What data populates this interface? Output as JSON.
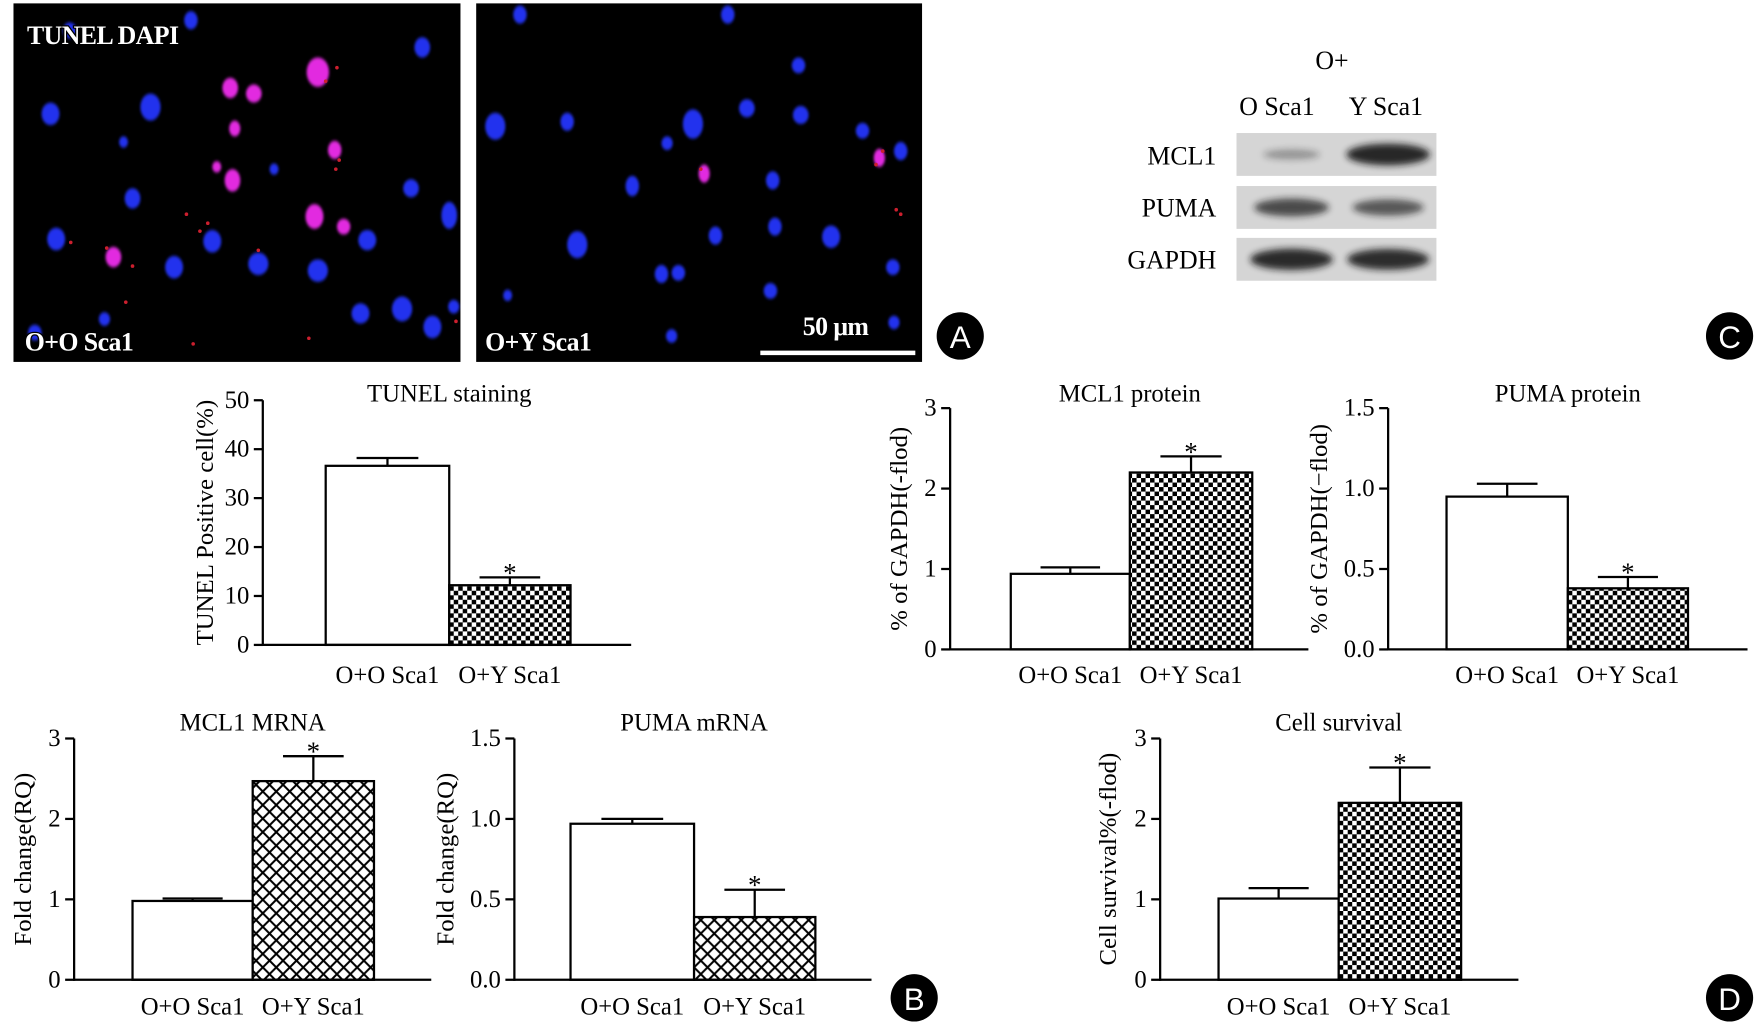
{
  "panels": {
    "a": "A",
    "b": "B",
    "c": "C",
    "d": "D"
  },
  "microscopy": {
    "stain_label": "TUNEL DAPI",
    "left_image_label": "O+O Sca1",
    "right_image_label": "O+Y Sca1",
    "scale_bar_label": "50 μm"
  },
  "western_blot": {
    "header": "O+",
    "lanes": [
      "O Sca1",
      "Y Sca1"
    ],
    "rows": [
      {
        "label": "MCL1",
        "band_intensity": [
          0.2,
          0.95
        ]
      },
      {
        "label": "PUMA",
        "band_intensity": [
          0.7,
          0.6
        ]
      },
      {
        "label": "GAPDH",
        "band_intensity": [
          0.92,
          0.9
        ]
      }
    ]
  },
  "colors": {
    "microscopy_background": "#000000",
    "dapi_nucleus": "#2233ee",
    "tunel_nucleus": "#e22be0",
    "tunel_speckle": "#cc1f2e",
    "scale_bar": "#ffffff",
    "blot_background": "#d5d5d5",
    "blot_band": "#141414",
    "panel_badge": "#000000"
  },
  "chart_data": [
    {
      "type": "bar",
      "title": "TUNEL staining",
      "xlabel": "",
      "ylabel": "TUNEL Positive cell(%)",
      "categories": [
        "O+O Sca1",
        "O+Y Sca1"
      ],
      "values": [
        36.6,
        12.2
      ],
      "errors": [
        1.6,
        1.6
      ],
      "ylim": [
        0,
        50
      ],
      "yticks": [
        0,
        10,
        20,
        30,
        40,
        50
      ],
      "ytick_labels": [
        "0",
        "10",
        "20",
        "30",
        "40",
        "50"
      ],
      "significance": [
        "",
        "*"
      ]
    },
    {
      "type": "bar",
      "title": "MCL1 MRNA",
      "xlabel": "",
      "ylabel": "Fold change(RQ)",
      "categories": [
        "O+O Sca1",
        "O+Y Sca1"
      ],
      "values": [
        0.98,
        2.47
      ],
      "errors": [
        0.03,
        0.31
      ],
      "ylim": [
        0,
        3
      ],
      "yticks": [
        0,
        1,
        2,
        3
      ],
      "ytick_labels": [
        "0",
        "1",
        "2",
        "3"
      ],
      "significance": [
        "",
        "*"
      ]
    },
    {
      "type": "bar",
      "title": "PUMA mRNA",
      "xlabel": "",
      "ylabel": "Fold change(RQ)",
      "categories": [
        "O+O Sca1",
        "O+Y Sca1"
      ],
      "values": [
        0.97,
        0.39
      ],
      "errors": [
        0.03,
        0.17
      ],
      "ylim": [
        0,
        1.5
      ],
      "yticks": [
        0,
        0.5,
        1.0,
        1.5
      ],
      "ytick_labels": [
        "0.0",
        "0.5",
        "1.0",
        "1.5"
      ],
      "significance": [
        "",
        "*"
      ]
    },
    {
      "type": "bar",
      "title": "MCL1 protein",
      "xlabel": "",
      "ylabel": "% of GAPDH(-flod)",
      "categories": [
        "O+O Sca1",
        "O+Y Sca1"
      ],
      "values": [
        0.94,
        2.2
      ],
      "errors": [
        0.08,
        0.2
      ],
      "ylim": [
        0,
        3
      ],
      "yticks": [
        0,
        1,
        2,
        3
      ],
      "ytick_labels": [
        "0",
        "1",
        "2",
        "3"
      ],
      "significance": [
        "",
        "*"
      ]
    },
    {
      "type": "bar",
      "title": "PUMA protein",
      "xlabel": "",
      "ylabel": "% of GAPDH(−flod)",
      "categories": [
        "O+O Sca1",
        "O+Y Sca1"
      ],
      "values": [
        0.95,
        0.38
      ],
      "errors": [
        0.08,
        0.07
      ],
      "ylim": [
        0,
        1.5
      ],
      "yticks": [
        0,
        0.5,
        1.0,
        1.5
      ],
      "ytick_labels": [
        "0.0",
        "0.5",
        "1.0",
        "1.5"
      ],
      "significance": [
        "",
        "*"
      ]
    },
    {
      "type": "bar",
      "title": "Cell survival",
      "xlabel": "",
      "ylabel": "Cell survival%(-flod)",
      "categories": [
        "O+O Sca1",
        "O+Y Sca1"
      ],
      "values": [
        1.01,
        2.2
      ],
      "errors": [
        0.13,
        0.44
      ],
      "ylim": [
        0,
        3
      ],
      "yticks": [
        0,
        1,
        2,
        3
      ],
      "ytick_labels": [
        "0",
        "1",
        "2",
        "3"
      ],
      "significance": [
        "",
        "*"
      ]
    }
  ]
}
